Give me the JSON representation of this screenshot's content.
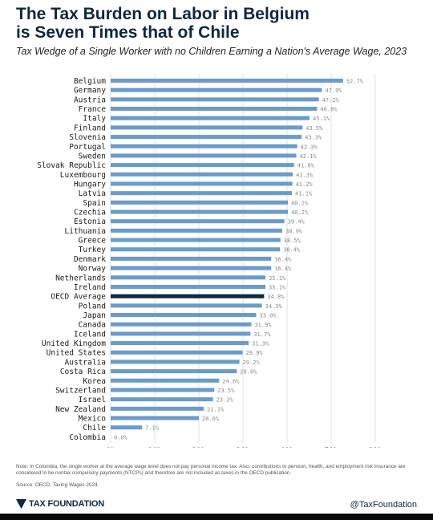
{
  "header": {
    "title": "The Tax Burden on Labor in Belgium\nis Seven Times that of Chile",
    "subtitle": "Tax Wedge of a Single Worker with no Children Earning a Nation's Average Wage, 2023"
  },
  "footer": {
    "note": "Note: In Colombia, the single worker at the average wage level does not pay personal income tax. Also, contributions to pension, health, and employment risk insurance are considered to be nontax compulsory payments (NTCPs) and therefore are not included as taxes in the OECD publication.",
    "source": "Source: OECD, Taxing Wages 2024.",
    "brand": "TAX FOUNDATION",
    "brand_icon": "tax-foundation-logo-icon",
    "handle": "@TaxFoundation"
  },
  "colors": {
    "bar": "#6a9bcb",
    "highlight_bar": "#0f2742",
    "title": "#0f2742",
    "value_label": "#8a8a8a"
  },
  "chart_data": {
    "type": "bar",
    "orientation": "horizontal",
    "categories": [
      "Belgium",
      "Germany",
      "Austria",
      "France",
      "Italy",
      "Finland",
      "Slovenia",
      "Portugal",
      "Sweden",
      "Slovak Republic",
      "Luxembourg",
      "Hungary",
      "Latvia",
      "Spain",
      "Czechia",
      "Estonia",
      "Lithuania",
      "Greece",
      "Turkey",
      "Denmark",
      "Norway",
      "Netherlands",
      "Ireland",
      "OECD Average",
      "Poland",
      "Japan",
      "Canada",
      "Iceland",
      "United Kingdom",
      "United States",
      "Australia",
      "Costa Rica",
      "Korea",
      "Switzerland",
      "Israel",
      "New Zealand",
      "Mexico",
      "Chile",
      "Colombia"
    ],
    "values": [
      52.7,
      47.9,
      47.2,
      46.8,
      45.1,
      43.5,
      43.3,
      42.3,
      42.1,
      41.6,
      41.3,
      41.2,
      41.1,
      40.2,
      40.2,
      39.4,
      38.9,
      38.5,
      38.4,
      36.4,
      36.4,
      35.1,
      35.1,
      34.8,
      34.3,
      33.0,
      31.9,
      31.7,
      31.3,
      29.9,
      29.2,
      28.6,
      24.6,
      23.5,
      23.2,
      21.1,
      20.0,
      7.1,
      0.0
    ],
    "value_labels": [
      "52.7%",
      "47.9%",
      "47.2%",
      "46.8%",
      "45.1%",
      "43.5%",
      "43.3%",
      "42.3%",
      "42.1%",
      "41.6%",
      "41.3%",
      "41.2%",
      "41.1%",
      "40.2%",
      "40.2%",
      "39.4%",
      "38.9%",
      "38.5%",
      "38.4%",
      "36.4%",
      "36.4%",
      "35.1%",
      "35.1%",
      "34.8%",
      "34.3%",
      "33.0%",
      "31.9%",
      "31.7%",
      "31.3%",
      "29.9%",
      "29.2%",
      "28.6%",
      "24.6%",
      "23.5%",
      "23.2%",
      "21.1%",
      "20.0%",
      "7.1%",
      "0.0%"
    ],
    "highlight": "OECD Average",
    "x_ticks": [
      "0%",
      "10%",
      "20%",
      "30%",
      "40%",
      "50%",
      "60%"
    ],
    "xlim": [
      0,
      60
    ],
    "grid": true,
    "legend": "none"
  }
}
